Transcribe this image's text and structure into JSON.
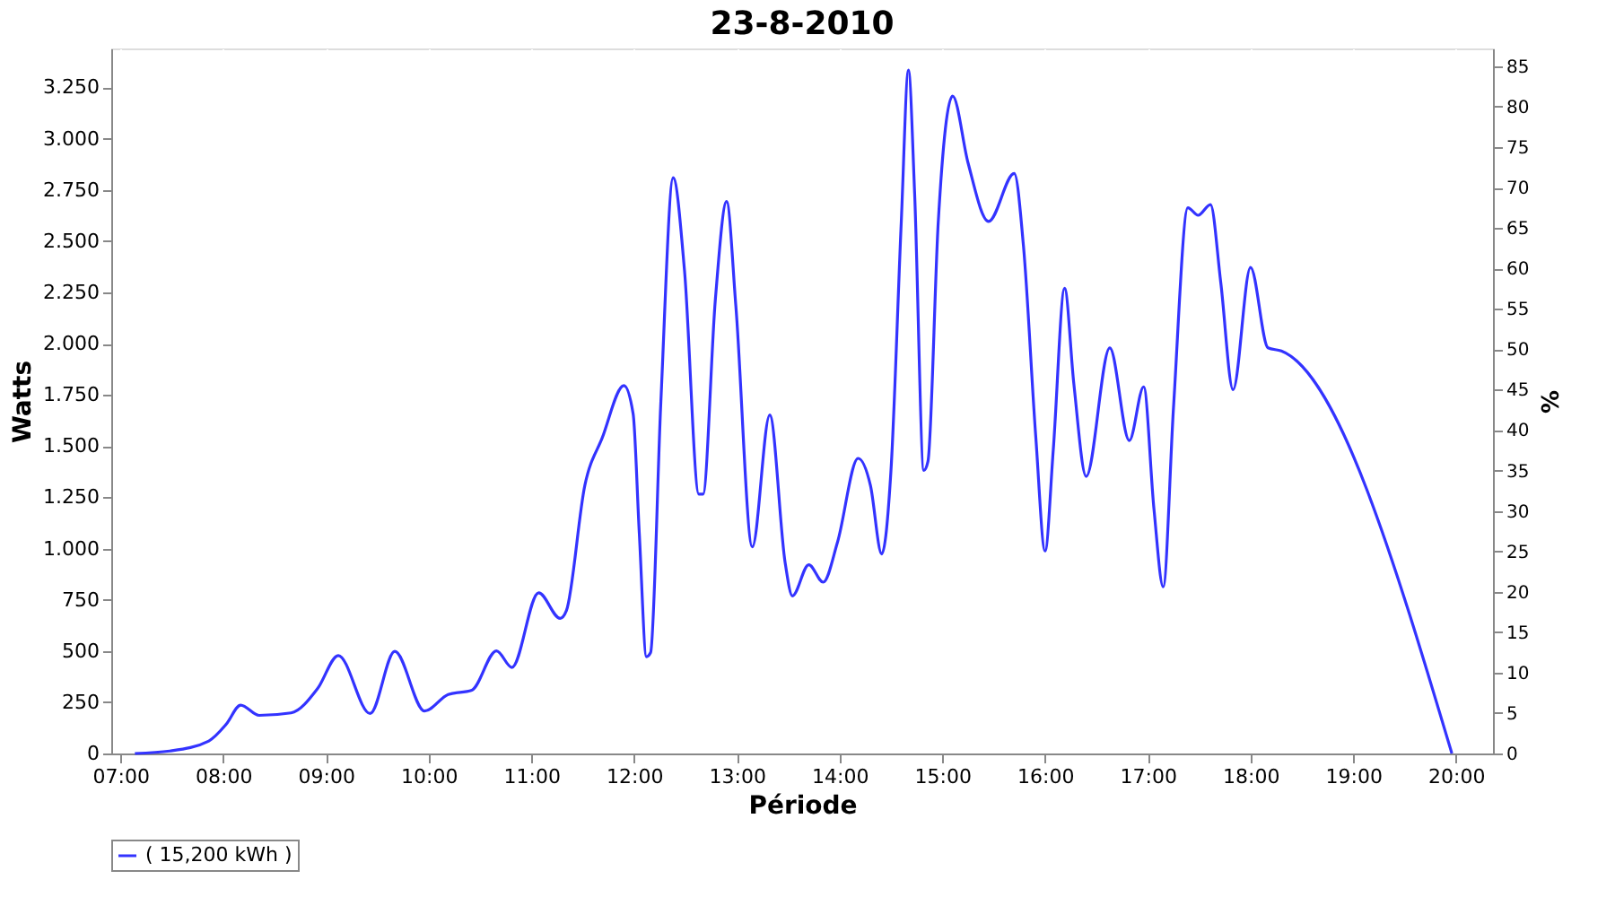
{
  "chart_data": {
    "type": "line",
    "title": "23-8-2010",
    "xlabel": "Période",
    "ylabel": "Watts",
    "y2label": "%",
    "xlim": [
      6.91,
      20.36
    ],
    "ylim": [
      0,
      3440
    ],
    "y2lim": [
      0,
      87.2
    ],
    "xticks": [
      {
        "value": 7,
        "label": "07:00"
      },
      {
        "value": 8,
        "label": "08:00"
      },
      {
        "value": 9,
        "label": "09:00"
      },
      {
        "value": 10,
        "label": "10:00"
      },
      {
        "value": 11,
        "label": "11:00"
      },
      {
        "value": 12,
        "label": "12:00"
      },
      {
        "value": 13,
        "label": "13:00"
      },
      {
        "value": 14,
        "label": "14:00"
      },
      {
        "value": 15,
        "label": "15:00"
      },
      {
        "value": 16,
        "label": "16:00"
      },
      {
        "value": 17,
        "label": "17:00"
      },
      {
        "value": 18,
        "label": "18:00"
      },
      {
        "value": 19,
        "label": "19:00"
      },
      {
        "value": 20,
        "label": "20:00"
      }
    ],
    "yticks": [
      0,
      250,
      500,
      750,
      {
        "value": 1000,
        "label": "1.000"
      },
      {
        "value": 1250,
        "label": "1.250"
      },
      {
        "value": 1500,
        "label": "1.500"
      },
      {
        "value": 1750,
        "label": "1.750"
      },
      {
        "value": 2000,
        "label": "2.000"
      },
      {
        "value": 2250,
        "label": "2.250"
      },
      {
        "value": 2500,
        "label": "2.500"
      },
      {
        "value": 2750,
        "label": "2.750"
      },
      {
        "value": 3000,
        "label": "3.000"
      },
      {
        "value": 3250,
        "label": "3.250"
      }
    ],
    "y2ticks": [
      0,
      5,
      10,
      15,
      20,
      25,
      30,
      35,
      40,
      45,
      50,
      55,
      60,
      65,
      70,
      75,
      80,
      85
    ],
    "grid": true,
    "legend": "bottom",
    "marker": "none",
    "line_style": "solid",
    "series": [
      {
        "name": "( 15,200 kWh )",
        "color": "#3333ff",
        "x": [
          7.14,
          7.48,
          7.86,
          8.03,
          8.17,
          8.35,
          8.66,
          8.92,
          9.12,
          9.43,
          9.67,
          9.96,
          10.19,
          10.42,
          10.66,
          10.81,
          11.07,
          11.28,
          11.34,
          11.52,
          11.69,
          11.9,
          11.99,
          12.05,
          12.12,
          12.16,
          12.26,
          12.38,
          12.49,
          12.63,
          12.67,
          12.79,
          12.9,
          12.99,
          13.15,
          13.32,
          13.47,
          13.54,
          13.7,
          13.84,
          13.98,
          14.18,
          14.3,
          14.41,
          14.5,
          14.6,
          14.67,
          14.73,
          14.82,
          14.86,
          14.96,
          15.1,
          15.25,
          15.45,
          15.7,
          15.79,
          15.91,
          16.0,
          16.08,
          16.19,
          16.28,
          16.4,
          16.63,
          16.82,
          16.96,
          17.06,
          17.15,
          17.25,
          17.39,
          17.49,
          17.61,
          17.71,
          17.83,
          18.0,
          18.17,
          18.3,
          19.96
        ],
        "values": [
          0,
          12,
          61,
          143,
          236,
          186,
          198,
          318,
          478,
          195,
          498,
          207,
          288,
          309,
          501,
          420,
          784,
          659,
          696,
          1308,
          1541,
          1795,
          1658,
          1075,
          472,
          492,
          1716,
          2809,
          2357,
          1265,
          1265,
          2212,
          2693,
          2183,
          1008,
          1652,
          930,
          769,
          921,
          836,
          1032,
          1440,
          1308,
          973,
          1381,
          2591,
          3334,
          2736,
          1381,
          1425,
          2591,
          3208,
          2882,
          2596,
          2830,
          2474,
          1541,
          988,
          1483,
          2270,
          1804,
          1352,
          1979,
          1527,
          1789,
          1192,
          813,
          1687,
          2663,
          2626,
          2678,
          2299,
          1775,
          2372,
          1979,
          1964,
          0
        ]
      }
    ]
  }
}
